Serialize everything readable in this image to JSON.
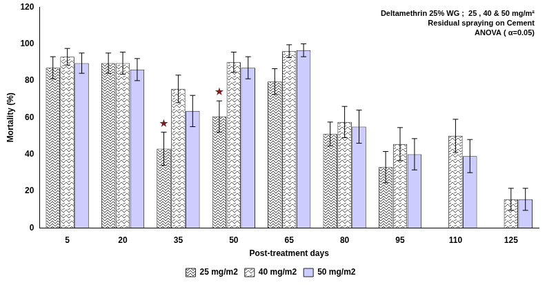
{
  "chart_data": {
    "type": "bar",
    "title": [
      "Deltamethrin 25% WG ;  25 , 40 & 50 mg/m²",
      "Residual spraying on Cement",
      "ANOVA ( α=0.05)"
    ],
    "x_label": "Post-treatment days",
    "y_label": "Mortality (%)",
    "categories": [
      "5",
      "20",
      "35",
      "50",
      "65",
      "80",
      "95",
      "110",
      "125"
    ],
    "series": [
      {
        "name": "25 mg/m2",
        "color": "#3a3a3a",
        "values": [
          87,
          89.5,
          43,
          60.5,
          79.5,
          51,
          33,
          0,
          0
        ],
        "errors": [
          6,
          5.5,
          9,
          8.5,
          7,
          6.5,
          8.5,
          0,
          0
        ]
      },
      {
        "name": "40 mg/m2",
        "color": "#5a5a5a",
        "values": [
          93,
          89.5,
          75.5,
          90,
          96,
          57.5,
          45.5,
          50,
          15.5
        ],
        "errors": [
          4.5,
          6,
          7.5,
          5.5,
          3.5,
          8.5,
          9,
          9,
          6
        ]
      },
      {
        "name": "50 mg/m2",
        "color": "#ccccff",
        "values": [
          89.5,
          86,
          63.5,
          87,
          96.5,
          55,
          40,
          39,
          15.5
        ],
        "errors": [
          5.5,
          6,
          8.5,
          6,
          3.5,
          9,
          8.5,
          9,
          6
        ]
      }
    ],
    "annotations": [
      {
        "text": "★",
        "category": "35",
        "series": "25 mg/m2",
        "color": "#7a1c1c"
      },
      {
        "text": "★",
        "category": "50",
        "series": "25 mg/m2",
        "color": "#7a1c1c"
      }
    ],
    "ylim": [
      0,
      120
    ],
    "yticks": [
      0,
      20,
      40,
      60,
      80,
      100,
      120
    ],
    "grid": false,
    "legend": "bottom"
  }
}
